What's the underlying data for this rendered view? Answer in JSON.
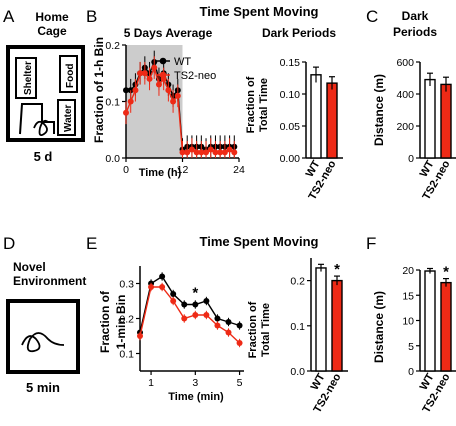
{
  "colors": {
    "wt": "#000000",
    "ts2": "#ee2a16",
    "shade": "#cccccc"
  },
  "schematics": [
    {
      "letter": "A",
      "title": [
        "Home",
        "Cage"
      ],
      "labels": [
        "Shelter",
        "Food",
        "Water"
      ],
      "caption": "5 d"
    },
    {
      "letter": "D",
      "title": [
        "Novel",
        "Environment"
      ],
      "labels": [],
      "caption": "5 min"
    }
  ],
  "chart_data": [
    {
      "panel": "B",
      "type": "line",
      "title": "Time Spent Moving",
      "subtitle": "5 Days Average",
      "xlabel": "Time (h)",
      "ylabel": "Fraction of 1-h Bin",
      "xlim": [
        0,
        24
      ],
      "ylim": [
        0,
        0.2
      ],
      "xticks": [
        0,
        12,
        24
      ],
      "yticks": [
        "0.0",
        "0.1",
        "0.2"
      ],
      "shaded_region": [
        0,
        12
      ],
      "legend": "top-left",
      "x": [
        0,
        1,
        2,
        3,
        4,
        5,
        6,
        7,
        8,
        9,
        10,
        11,
        12,
        13,
        14,
        15,
        16,
        17,
        18,
        19,
        20,
        21,
        22,
        23
      ],
      "series": [
        {
          "name": "WT",
          "values": [
            0.12,
            0.12,
            0.13,
            0.15,
            0.16,
            0.15,
            0.17,
            0.14,
            0.15,
            0.13,
            0.11,
            0.12,
            0.015,
            0.02,
            0.02,
            0.02,
            0.02,
            0.015,
            0.02,
            0.02,
            0.02,
            0.02,
            0.02,
            0.02
          ],
          "err": 0.02
        },
        {
          "name": "TS2-neo",
          "values": [
            0.08,
            0.1,
            0.12,
            0.15,
            0.15,
            0.14,
            0.16,
            0.13,
            0.14,
            0.12,
            0.1,
            0.11,
            0.01,
            0.01,
            0.015,
            0.01,
            0.01,
            0.01,
            0.015,
            0.01,
            0.01,
            0.01,
            0.015,
            0.01
          ],
          "err": 0.02
        }
      ]
    },
    {
      "panel": "B2",
      "type": "bar",
      "title": "Dark Periods",
      "ylabel": "Fraction of Total Time",
      "ylim": [
        0,
        0.15
      ],
      "yticks": [
        "0.00",
        "0.05",
        "0.10",
        "0.15"
      ],
      "categories": [
        "WT",
        "TS2-neo"
      ],
      "values": [
        0.13,
        0.117
      ],
      "errors": [
        0.012,
        0.01
      ]
    },
    {
      "panel": "C",
      "type": "bar",
      "title": "Dark Periods",
      "ylabel": "Distance (m)",
      "ylim": [
        0,
        600
      ],
      "yticks": [
        "0",
        "200",
        "400",
        "600"
      ],
      "categories": [
        "WT",
        "TS2-neo"
      ],
      "values": [
        490,
        460
      ],
      "errors": [
        40,
        45
      ]
    },
    {
      "panel": "E",
      "type": "line",
      "title": "Time Spent Moving",
      "xlabel": "Time (min)",
      "ylabel": "Fraction of 1-min Bin",
      "xlim": [
        0.5,
        5.2
      ],
      "ylim": [
        0.05,
        0.35
      ],
      "xticks": [
        "1",
        "3",
        "5"
      ],
      "yticks": [
        "0.1",
        "0.2",
        "0.3"
      ],
      "sig": [
        {
          "x": 3,
          "label": "*"
        }
      ],
      "x": [
        0.5,
        1,
        1.5,
        2,
        2.5,
        3,
        3.5,
        4,
        4.5,
        5
      ],
      "series": [
        {
          "name": "WT",
          "values": [
            0.16,
            0.3,
            0.32,
            0.27,
            0.24,
            0.24,
            0.25,
            0.2,
            0.19,
            0.18
          ],
          "err": 0.012
        },
        {
          "name": "TS2-neo",
          "values": [
            0.15,
            0.29,
            0.29,
            0.25,
            0.2,
            0.21,
            0.21,
            0.18,
            0.16,
            0.13
          ],
          "err": 0.012
        }
      ]
    },
    {
      "panel": "E2",
      "type": "bar",
      "ylabel": "Fraction of Total Time",
      "ylim": [
        0,
        0.25
      ],
      "yticks": [
        "0.0",
        "0.1",
        "0.2"
      ],
      "categories": [
        "WT",
        "TS2-neo"
      ],
      "values": [
        0.228,
        0.2
      ],
      "errors": [
        0.008,
        0.01
      ],
      "sig": [
        "",
        "*"
      ]
    },
    {
      "panel": "F",
      "type": "bar",
      "ylabel": "Distance (m)",
      "ylim": [
        0,
        20
      ],
      "yticks": [
        "0",
        "5",
        "10",
        "15",
        "20"
      ],
      "categories": [
        "WT",
        "TS2-neo"
      ],
      "values": [
        19.8,
        17.5
      ],
      "errors": [
        0.5,
        0.8
      ],
      "sig": [
        "",
        "*"
      ]
    }
  ]
}
